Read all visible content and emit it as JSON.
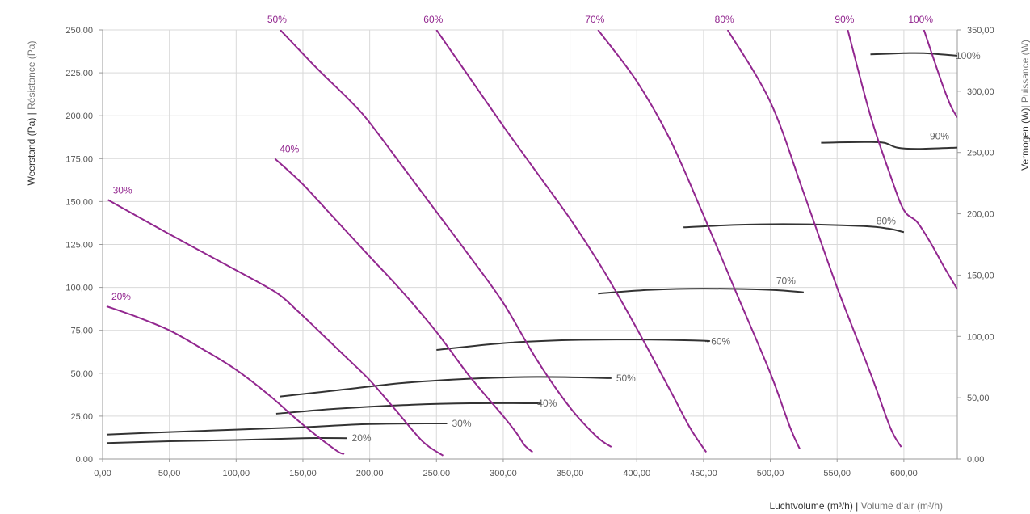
{
  "colors": {
    "fan_curve": "#92278f",
    "power_curve": "#333333",
    "grid": "#d9d9d9"
  },
  "chart_data": {
    "type": "line",
    "xlabel": {
      "main": "Luchtvolume (m³/h)",
      "sep": " | ",
      "sub": "Volume d’air (m³/h)"
    },
    "ylabel_left": {
      "main": "Weerstand (Pa)",
      "sep": " | ",
      "sub": "Résistance (Pa)"
    },
    "ylabel_right": {
      "main": "Vermogen (W)",
      "sep": "| ",
      "sub": "Puissance (W)"
    },
    "xlim": [
      0,
      640
    ],
    "ylim_left": [
      0,
      250
    ],
    "ylim_right": [
      0,
      350
    ],
    "grid": true,
    "x_ticks": [
      {
        "v": 0,
        "t": "0,00"
      },
      {
        "v": 50,
        "t": "50,00"
      },
      {
        "v": 100,
        "t": "100,00"
      },
      {
        "v": 150,
        "t": "150,00"
      },
      {
        "v": 200,
        "t": "200,00"
      },
      {
        "v": 250,
        "t": "250,00"
      },
      {
        "v": 300,
        "t": "300,00"
      },
      {
        "v": 350,
        "t": "350,00"
      },
      {
        "v": 400,
        "t": "400,00"
      },
      {
        "v": 450,
        "t": "450,00"
      },
      {
        "v": 500,
        "t": "500,00"
      },
      {
        "v": 550,
        "t": "550,00"
      },
      {
        "v": 600,
        "t": "600,00"
      }
    ],
    "y_left_ticks": [
      {
        "v": 0,
        "t": "0,00"
      },
      {
        "v": 25,
        "t": "25,00"
      },
      {
        "v": 50,
        "t": "50,00"
      },
      {
        "v": 75,
        "t": "75,00"
      },
      {
        "v": 100,
        "t": "100,00"
      },
      {
        "v": 125,
        "t": "125,00"
      },
      {
        "v": 150,
        "t": "150,00"
      },
      {
        "v": 175,
        "t": "175,00"
      },
      {
        "v": 200,
        "t": "200,00"
      },
      {
        "v": 225,
        "t": "225,00"
      },
      {
        "v": 250,
        "t": "250,00"
      }
    ],
    "y_right_ticks": [
      {
        "v": 0,
        "t": "0,00"
      },
      {
        "v": 50,
        "t": "50,00"
      },
      {
        "v": 100,
        "t": "100,00"
      },
      {
        "v": 150,
        "t": "150,00"
      },
      {
        "v": 200,
        "t": "200,00"
      },
      {
        "v": 250,
        "t": "250,00"
      },
      {
        "v": 300,
        "t": "300,00"
      },
      {
        "v": 350,
        "t": "350,00"
      }
    ],
    "pressure_series": [
      {
        "name": "20%",
        "label_anchor": "start",
        "points": [
          [
            3,
            89
          ],
          [
            25,
            83
          ],
          [
            50,
            75
          ],
          [
            75,
            64
          ],
          [
            100,
            52
          ],
          [
            125,
            37
          ],
          [
            150,
            20
          ],
          [
            175,
            5
          ],
          [
            181,
            3
          ]
        ]
      },
      {
        "name": "30%",
        "label_anchor": "start",
        "points": [
          [
            4,
            151
          ],
          [
            50,
            131
          ],
          [
            100,
            110
          ],
          [
            130,
            97
          ],
          [
            145,
            87
          ],
          [
            160,
            76
          ],
          [
            180,
            61
          ],
          [
            200,
            46
          ],
          [
            220,
            28
          ],
          [
            240,
            10
          ],
          [
            255,
            2
          ]
        ]
      },
      {
        "name": "40%",
        "label_anchor": "start",
        "points": [
          [
            129,
            175
          ],
          [
            150,
            160
          ],
          [
            175,
            139
          ],
          [
            200,
            118
          ],
          [
            225,
            97
          ],
          [
            250,
            74
          ],
          [
            275,
            48
          ],
          [
            300,
            25
          ],
          [
            310,
            15
          ],
          [
            316,
            8
          ],
          [
            322,
            4
          ]
        ]
      },
      {
        "name": "50%",
        "label_anchor": "top",
        "points": [
          [
            133,
            250
          ],
          [
            160,
            228
          ],
          [
            185,
            209
          ],
          [
            200,
            196
          ],
          [
            225,
            170
          ],
          [
            250,
            144
          ],
          [
            275,
            118
          ],
          [
            300,
            91
          ],
          [
            325,
            58
          ],
          [
            350,
            30
          ],
          [
            370,
            13
          ],
          [
            381,
            7
          ]
        ]
      },
      {
        "name": "60%",
        "label_anchor": "top",
        "points": [
          [
            250,
            250
          ],
          [
            275,
            222
          ],
          [
            300,
            194
          ],
          [
            325,
            167
          ],
          [
            350,
            140
          ],
          [
            375,
            110
          ],
          [
            400,
            76
          ],
          [
            425,
            40
          ],
          [
            440,
            18
          ],
          [
            452,
            4
          ]
        ]
      },
      {
        "name": "70%",
        "label_anchor": "top",
        "points": [
          [
            371,
            250
          ],
          [
            400,
            220
          ],
          [
            425,
            186
          ],
          [
            450,
            142
          ],
          [
            475,
            96
          ],
          [
            500,
            50
          ],
          [
            515,
            18
          ],
          [
            522,
            6
          ]
        ]
      },
      {
        "name": "80%",
        "label_anchor": "top",
        "points": [
          [
            468,
            250
          ],
          [
            500,
            208
          ],
          [
            525,
            155
          ],
          [
            550,
            100
          ],
          [
            575,
            50
          ],
          [
            590,
            18
          ],
          [
            598,
            7
          ]
        ]
      },
      {
        "name": "90%",
        "label_anchor": "top",
        "points": [
          [
            558,
            250
          ],
          [
            575,
            200
          ],
          [
            590,
            165
          ],
          [
            600,
            145
          ],
          [
            610,
            138
          ],
          [
            620,
            126
          ],
          [
            630,
            112
          ],
          [
            640,
            99
          ]
        ]
      },
      {
        "name": "100%",
        "label_anchor": "top",
        "points": [
          [
            615,
            250
          ],
          [
            628,
            220
          ],
          [
            635,
            206
          ],
          [
            640,
            199
          ]
        ]
      }
    ],
    "power_series": [
      {
        "name": "20%",
        "points": [
          [
            3,
            13
          ],
          [
            50,
            14.5
          ],
          [
            100,
            15.5
          ],
          [
            150,
            17
          ],
          [
            183,
            17
          ]
        ]
      },
      {
        "name": "30%",
        "points": [
          [
            3,
            20
          ],
          [
            50,
            22
          ],
          [
            100,
            24
          ],
          [
            150,
            26
          ],
          [
            200,
            28.5
          ],
          [
            250,
            29
          ],
          [
            258,
            29
          ]
        ]
      },
      {
        "name": "40%",
        "points": [
          [
            130,
            37
          ],
          [
            175,
            41
          ],
          [
            225,
            44
          ],
          [
            275,
            45.5
          ],
          [
            325,
            45.5
          ],
          [
            322,
            45.5
          ]
        ]
      },
      {
        "name": "50%",
        "points": [
          [
            133,
            51
          ],
          [
            175,
            56
          ],
          [
            225,
            62
          ],
          [
            275,
            65.5
          ],
          [
            325,
            67
          ],
          [
            381,
            66
          ]
        ]
      },
      {
        "name": "60%",
        "points": [
          [
            250,
            89
          ],
          [
            300,
            94.5
          ],
          [
            350,
            97
          ],
          [
            400,
            97.5
          ],
          [
            450,
            96.5
          ],
          [
            452,
            96
          ]
        ]
      },
      {
        "name": "70%",
        "points": [
          [
            371,
            135
          ],
          [
            410,
            138
          ],
          [
            450,
            139
          ],
          [
            500,
            138
          ],
          [
            525,
            136
          ]
        ]
      },
      {
        "name": "80%",
        "points": [
          [
            435,
            189
          ],
          [
            475,
            191
          ],
          [
            520,
            191.5
          ],
          [
            570,
            190
          ],
          [
            588,
            188
          ],
          [
            600,
            185
          ]
        ]
      },
      {
        "name": "90%",
        "points": [
          [
            538,
            258
          ],
          [
            570,
            258.5
          ],
          [
            585,
            258
          ],
          [
            595,
            254
          ],
          [
            610,
            253
          ],
          [
            640,
            254
          ]
        ]
      },
      {
        "name": "100%",
        "points": [
          [
            575,
            330
          ],
          [
            600,
            331
          ],
          [
            615,
            331
          ],
          [
            640,
            329
          ]
        ]
      }
    ]
  }
}
